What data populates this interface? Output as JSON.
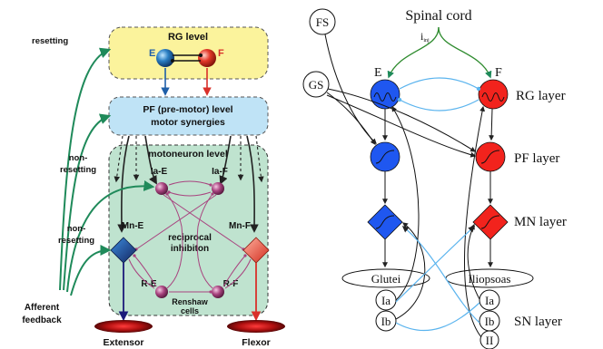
{
  "left": {
    "rg_box": {
      "title": "RG level",
      "e": "E",
      "f": "F"
    },
    "pf_box": {
      "line1": "PF (pre-motor) level",
      "line2": "motor synergies"
    },
    "mn_box": {
      "title": "motoneuron level"
    },
    "labels": {
      "resetting": "resetting",
      "non_resetting_1a": "non-",
      "non_resetting_1b": "resetting",
      "non_resetting_2a": "non-",
      "non_resetting_2b": "resetting",
      "afferent_1": "Afferent",
      "afferent_2": "feedback",
      "ia_e": "Ia-E",
      "ia_f": "Ia-F",
      "mn_e": "Mn-E",
      "mn_f": "Mn-F",
      "reciprocal_1": "reciprocal",
      "reciprocal_2": "inhibiton",
      "r_e": "R-E",
      "r_f": "R-F",
      "renshaw_1": "Renshaw",
      "renshaw_2": "cells",
      "extensor": "Extensor",
      "flexor": "Flexor"
    },
    "colors": {
      "rg_fill": "#fbf39c",
      "pf_fill": "#bfe3f6",
      "mn_fill": "#bfe3cf",
      "green_arrow": "#1f8a5a",
      "e_blue": "#1f5fa8",
      "f_red": "#d9302a",
      "interneuron": "#a8437f",
      "extensor_dark": "#1c1a7a"
    }
  },
  "right": {
    "fs": "FS",
    "gs": "GS",
    "spinal_cord": "Spinal cord",
    "i_inj": "i",
    "i_inj_sub": "inj",
    "e": "E",
    "f": "F",
    "rg_layer": "RG layer",
    "pf_layer": "PF layer",
    "mn_layer": "MN layer",
    "sn_layer": "SN layer",
    "glutei": "Glutei",
    "iliopsoas": "Iliopsoas",
    "ia_left": "Ia",
    "ib_left": "Ib",
    "ia_right": "Ia",
    "ib_right": "Ib",
    "ii": "II",
    "colors": {
      "blue": "#1f57f0",
      "red": "#f2231d",
      "green": "#2e8b2e",
      "light_blue": "#5bb4ee"
    }
  }
}
